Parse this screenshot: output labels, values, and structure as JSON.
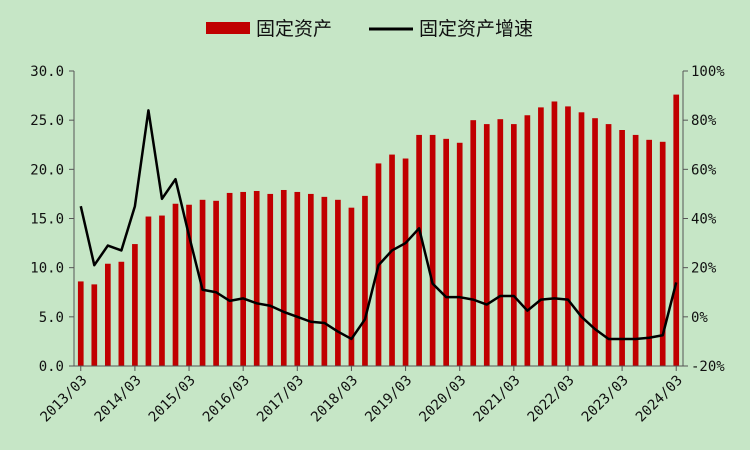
{
  "chart_data": {
    "type": "bar+line",
    "legend": {
      "position": "top-center",
      "entries": [
        {
          "label": "固定资产",
          "kind": "bar",
          "color": "#c00000"
        },
        {
          "label": "固定资产增速",
          "kind": "line",
          "color": "#000000"
        }
      ]
    },
    "x_tick_labels": [
      "2013/03",
      "2014/03",
      "2015/03",
      "2016/03",
      "2017/03",
      "2018/03",
      "2019/03",
      "2020/03",
      "2021/03",
      "2022/03",
      "2023/03",
      "2024/03"
    ],
    "y_left": {
      "min": 0,
      "max": 30,
      "step": 5,
      "tick_labels": [
        "0.0",
        "5.0",
        "10.0",
        "15.0",
        "20.0",
        "25.0",
        "30.0"
      ]
    },
    "y_right": {
      "min": -20,
      "max": 100,
      "step": 20,
      "tick_labels": [
        "-20%",
        "0%",
        "20%",
        "40%",
        "60%",
        "80%",
        "100%"
      ]
    },
    "grid": false,
    "x": [
      "2013Q1",
      "2013Q2",
      "2013Q3",
      "2013Q4",
      "2014Q1",
      "2014Q2",
      "2014Q3",
      "2014Q4",
      "2015Q1",
      "2015Q2",
      "2015Q3",
      "2015Q4",
      "2016Q1",
      "2016Q2",
      "2016Q3",
      "2016Q4",
      "2017Q1",
      "2017Q2",
      "2017Q3",
      "2017Q4",
      "2018Q1",
      "2018Q2",
      "2018Q3",
      "2018Q4",
      "2019Q1",
      "2019Q2",
      "2019Q3",
      "2019Q4",
      "2020Q1",
      "2020Q2",
      "2020Q3",
      "2020Q4",
      "2021Q1",
      "2021Q2",
      "2021Q3",
      "2021Q4",
      "2022Q1",
      "2022Q2",
      "2022Q3",
      "2022Q4",
      "2023Q1",
      "2023Q2",
      "2023Q3",
      "2023Q4",
      "2024Q1"
    ],
    "series": [
      {
        "name": "固定资产",
        "type": "bar",
        "axis": "left",
        "color": "#c00000",
        "values": [
          8.6,
          8.3,
          10.4,
          10.6,
          12.4,
          15.2,
          15.3,
          16.5,
          16.4,
          16.9,
          16.8,
          17.6,
          17.7,
          17.8,
          17.5,
          17.9,
          17.7,
          17.5,
          17.2,
          16.9,
          16.1,
          17.3,
          20.6,
          21.5,
          21.1,
          23.5,
          23.5,
          23.1,
          22.7,
          25.0,
          24.6,
          25.1,
          24.6,
          25.5,
          26.3,
          26.9,
          26.4,
          25.8,
          25.2,
          24.6,
          24.0,
          23.5,
          23.0,
          22.8,
          27.6
        ]
      },
      {
        "name": "固定资产增速",
        "type": "line",
        "axis": "right",
        "color": "#000000",
        "values": [
          45,
          21,
          29,
          27,
          45,
          84,
          48,
          56,
          33,
          11,
          10,
          6.5,
          7.5,
          5.5,
          4.5,
          2,
          0,
          -2,
          -2.5,
          -6,
          -9,
          -1,
          21,
          27,
          30,
          36,
          13.5,
          8,
          8,
          7,
          5,
          8.5,
          8.5,
          2.5,
          7,
          7.5,
          7,
          0,
          -5,
          -9,
          -9,
          -9,
          -8.5,
          -7.5,
          14
        ]
      }
    ]
  }
}
